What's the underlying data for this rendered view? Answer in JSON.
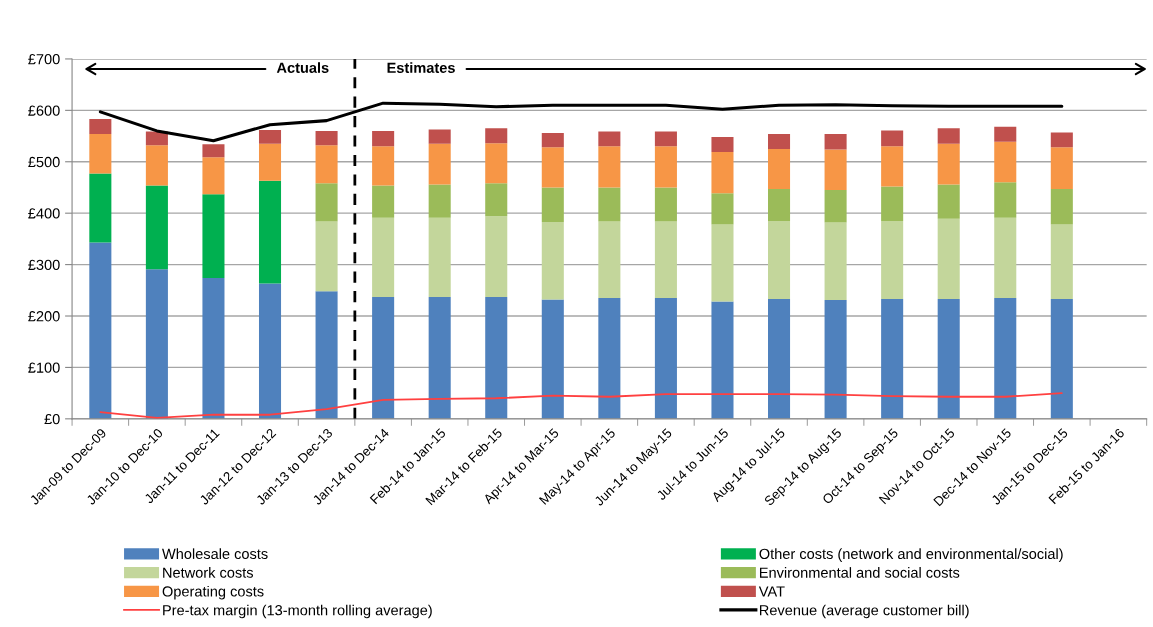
{
  "chart_data": {
    "type": "bar",
    "stacked": true,
    "categories": [
      "Jan-09 to Dec-09",
      "Jan-10 to Dec-10",
      "Jan-11 to Dec-11",
      "Jan-12 to Dec-12",
      "Jan-13 to Dec-13",
      "Jan-14 to Dec-14",
      "Feb-14 to Jan-15",
      "Mar-14 to Feb-15",
      "Apr-14 to Mar-15",
      "May-14 to Apr-15",
      "Jun-14 to May-15",
      "Jul-14 to Jun-15",
      "Aug-14 to Jul-15",
      "Sep-14 to Aug-15",
      "Oct-14 to Sep-15",
      "Nov-14 to Oct-15",
      "Dec-14 to Nov-15",
      "Jan-15 to Dec-15",
      "Feb-15 to Jan-16"
    ],
    "series": [
      {
        "name": "Wholesale costs",
        "color": "#4f81bd",
        "values": [
          343,
          291,
          274,
          263,
          248,
          237,
          237,
          237,
          232,
          235,
          235,
          228,
          233,
          231,
          233,
          233,
          235,
          233,
          null
        ]
      },
      {
        "name": "Other costs (network and environmental/social)",
        "color": "#00b050",
        "values": [
          134,
          163,
          163,
          200,
          null,
          null,
          null,
          null,
          null,
          null,
          null,
          null,
          null,
          null,
          null,
          null,
          null,
          null,
          null
        ]
      },
      {
        "name": "Network costs",
        "color": "#c3d69b",
        "values": [
          null,
          null,
          null,
          null,
          136,
          154,
          154,
          157,
          151,
          149,
          149,
          150,
          152,
          151,
          152,
          156,
          156,
          145,
          null
        ]
      },
      {
        "name": "Environmental and social costs",
        "color": "#9bbb59",
        "values": [
          null,
          null,
          null,
          null,
          74,
          63,
          65,
          64,
          67,
          66,
          66,
          61,
          62,
          63,
          67,
          67,
          69,
          69,
          null
        ]
      },
      {
        "name": "Operating costs",
        "color": "#f79646",
        "values": [
          77,
          78,
          72,
          72,
          74,
          76,
          79,
          78,
          78,
          80,
          80,
          80,
          78,
          79,
          78,
          79,
          79,
          81,
          null
        ]
      },
      {
        "name": "VAT",
        "color": "#c0504d",
        "values": [
          29,
          27,
          25,
          27,
          28,
          30,
          28,
          29,
          28,
          29,
          29,
          29,
          29,
          30,
          31,
          30,
          29,
          29,
          null
        ]
      },
      {
        "name": "Pre-tax margin (13-month rolling average)",
        "type": "line",
        "color": "#ff4040",
        "values": [
          13,
          2,
          8,
          8,
          19,
          37,
          39,
          40,
          45,
          43,
          48,
          48,
          48,
          47,
          44,
          43,
          43,
          50,
          null
        ]
      },
      {
        "name": "Revenue (average customer bill)",
        "type": "line",
        "color": "#000000",
        "values": [
          597,
          560,
          541,
          572,
          580,
          614,
          612,
          607,
          610,
          610,
          610,
          602,
          610,
          611,
          609,
          608,
          608,
          608,
          null
        ]
      }
    ],
    "ylim": [
      0,
      700
    ],
    "yticks": [
      {
        "value": 0,
        "label": "£0"
      },
      {
        "value": 100,
        "label": "£100"
      },
      {
        "value": 200,
        "label": "£200"
      },
      {
        "value": 300,
        "label": "£300"
      },
      {
        "value": 400,
        "label": "£400"
      },
      {
        "value": 500,
        "label": "£500"
      },
      {
        "value": 600,
        "label": "£600"
      },
      {
        "value": 700,
        "label": "£700"
      }
    ],
    "grid": "y",
    "legend": "bottom",
    "line_style": "solid",
    "ref_lines": [
      {
        "axis": "x",
        "value": "Jan-14 to Dec-14",
        "color": "#000000",
        "line_style": "dashed"
      }
    ],
    "annotations": [
      "Actuals",
      "Estimates"
    ]
  }
}
